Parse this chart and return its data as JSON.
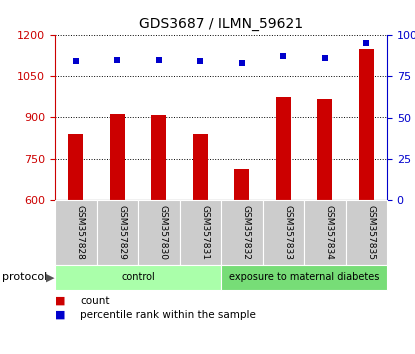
{
  "title": "GDS3687 / ILMN_59621",
  "samples": [
    "GSM357828",
    "GSM357829",
    "GSM357830",
    "GSM357831",
    "GSM357832",
    "GSM357833",
    "GSM357834",
    "GSM357835"
  ],
  "bar_values": [
    840,
    912,
    910,
    840,
    712,
    975,
    968,
    1150
  ],
  "percentile_values": [
    84,
    85,
    85,
    84,
    83,
    87,
    86,
    95
  ],
  "bar_color": "#cc0000",
  "dot_color": "#0000cc",
  "left_ylim": [
    600,
    1200
  ],
  "right_ylim": [
    0,
    100
  ],
  "left_yticks": [
    600,
    750,
    900,
    1050,
    1200
  ],
  "right_yticks": [
    0,
    25,
    50,
    75,
    100
  ],
  "right_yticklabels": [
    "0",
    "25",
    "50",
    "75",
    "100%"
  ],
  "groups": [
    {
      "label": "control",
      "start": 0,
      "end": 4,
      "color": "#aaffaa"
    },
    {
      "label": "exposure to maternal diabetes",
      "start": 4,
      "end": 8,
      "color": "#77dd77"
    }
  ],
  "protocol_label": "protocol",
  "legend_items": [
    {
      "label": "count",
      "color": "#cc0000"
    },
    {
      "label": "percentile rank within the sample",
      "color": "#0000cc"
    }
  ],
  "figsize": [
    4.15,
    3.54
  ],
  "dpi": 100
}
